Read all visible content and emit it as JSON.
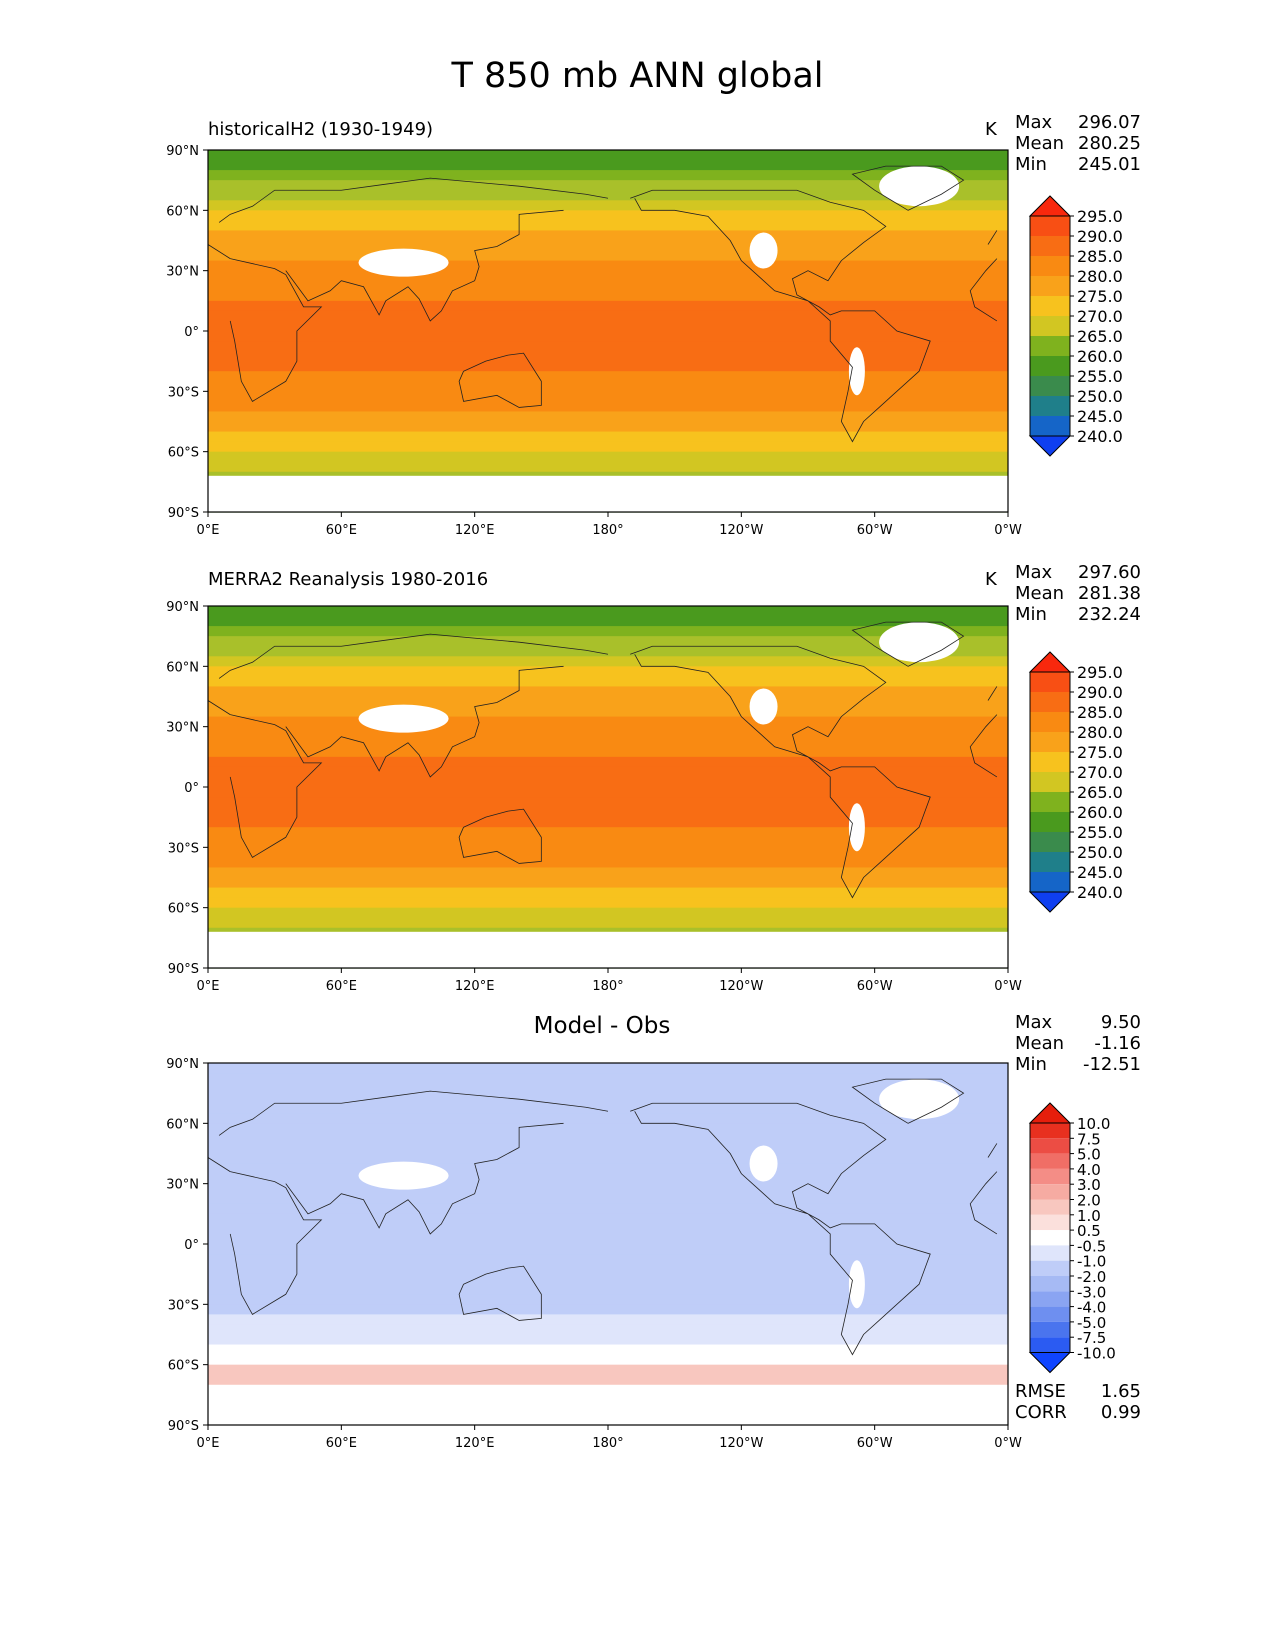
{
  "title": "T 850 mb ANN global",
  "colors": {
    "abs_levels": [
      "#0f3ff0",
      "#1565c8",
      "#1f7f8a",
      "#3a8b4c",
      "#4a9a1e",
      "#7fb21e",
      "#a9c02a",
      "#d2c622",
      "#f7c21e",
      "#f9a21a",
      "#f98a12",
      "#f86d14",
      "#f84f14",
      "#f8280d"
    ],
    "diff_levels": [
      "#0f44ff",
      "#2b5bf2",
      "#4a74ee",
      "#6e8ff0",
      "#8aa4f2",
      "#a6baf4",
      "#bfcdf8",
      "#dfe5fb",
      "#ffffff",
      "#fbe0dc",
      "#f8c7bf",
      "#f6aba2",
      "#f48d86",
      "#f06e66",
      "#ec4d44",
      "#e8301f",
      "#e61e0c"
    ]
  },
  "axis_labels": {
    "lat": [
      "90°N",
      "60°N",
      "30°N",
      "0°",
      "30°S",
      "60°S",
      "90°S"
    ],
    "lon": [
      "0°E",
      "60°E",
      "120°E",
      "180°",
      "120°W",
      "60°W",
      "0°W"
    ]
  },
  "stat_labels": {
    "max": "Max",
    "mean": "Mean",
    "min": "Min",
    "rmse": "RMSE",
    "corr": "CORR"
  },
  "chart_data": [
    {
      "type": "heatmap",
      "title": "historicalH2 (1930-1949)",
      "units": "K",
      "stats": {
        "max": "296.07",
        "mean": "280.25",
        "min": "245.01"
      },
      "colorbar_ticks": [
        "295.0",
        "290.0",
        "285.0",
        "280.0",
        "275.0",
        "270.0",
        "265.0",
        "260.0",
        "255.0",
        "250.0",
        "245.0",
        "240.0"
      ],
      "xlim": [
        0,
        360
      ],
      "ylim": [
        -90,
        90
      ]
    },
    {
      "type": "heatmap",
      "title": "MERRA2 Reanalysis 1980-2016",
      "units": "K",
      "stats": {
        "max": "297.60",
        "mean": "281.38",
        "min": "232.24"
      },
      "colorbar_ticks": [
        "295.0",
        "290.0",
        "285.0",
        "280.0",
        "275.0",
        "270.0",
        "265.0",
        "260.0",
        "255.0",
        "250.0",
        "245.0",
        "240.0"
      ],
      "xlim": [
        0,
        360
      ],
      "ylim": [
        -90,
        90
      ]
    },
    {
      "type": "heatmap",
      "title": "Model - Obs",
      "units": "",
      "stats": {
        "max": "9.50",
        "mean": "-1.16",
        "min": "-12.51",
        "rmse": "1.65",
        "corr": "0.99"
      },
      "colorbar_ticks": [
        "10.0",
        "7.5",
        "5.0",
        "4.0",
        "3.0",
        "2.0",
        "1.0",
        "0.5",
        "-0.5",
        "-1.0",
        "-2.0",
        "-3.0",
        "-4.0",
        "-5.0",
        "-7.5",
        "-10.0"
      ],
      "xlim": [
        0,
        360
      ],
      "ylim": [
        -90,
        90
      ]
    }
  ]
}
